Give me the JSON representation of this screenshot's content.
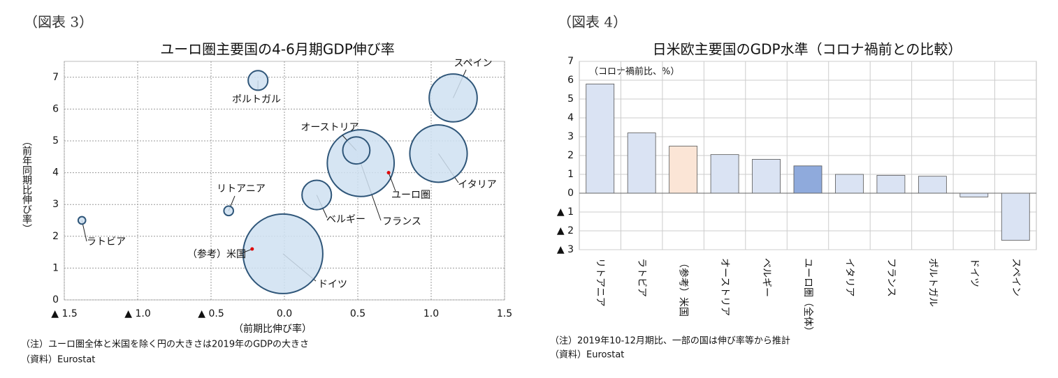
{
  "chart_data": [
    {
      "type": "bubble",
      "label": "（図表 3）",
      "title": "ユーロ圏主要国の4-6月期GDP伸び率",
      "x_label": "（前期比伸び率）",
      "y_label": "（前年同期比伸び率）",
      "xlim": [
        -1.5,
        1.5
      ],
      "xticks": [
        {
          "value": -1.5,
          "label": "▲ 1.5"
        },
        {
          "value": -1.0,
          "label": "▲ 1.0"
        },
        {
          "value": -0.5,
          "label": "▲ 0.5"
        },
        {
          "value": 0,
          "label": "0.0"
        },
        0.5,
        {
          "value": 1.0,
          "label": "1.0"
        },
        1.5
      ],
      "ylim": [
        0,
        7.5
      ],
      "yticks": [
        0,
        1,
        2,
        3,
        4,
        5,
        6,
        7
      ],
      "grid": true,
      "points": [
        {
          "name": "スペイン",
          "x": 1.15,
          "y": 6.35,
          "size": 1.25,
          "color": "#cfe0f1"
        },
        {
          "name": "イタリア",
          "x": 1.05,
          "y": 4.6,
          "size": 1.79,
          "color": "#cfe0f1"
        },
        {
          "name": "フランス",
          "x": 0.52,
          "y": 4.3,
          "size": 2.43,
          "color": "#cfe0f1"
        },
        {
          "name": "オーストリア",
          "x": 0.49,
          "y": 4.7,
          "size": 0.4,
          "color": "#cfe0f1"
        },
        {
          "name": "ポルトガル",
          "x": -0.18,
          "y": 6.9,
          "size": 0.21,
          "color": "#cfe0f1"
        },
        {
          "name": "ユーロ圏",
          "x": 0.71,
          "y": 4.0,
          "size": null,
          "color": "#e00000"
        },
        {
          "name": "ベルギー",
          "x": 0.22,
          "y": 3.3,
          "size": 0.47,
          "color": "#cfe0f1"
        },
        {
          "name": "リトアニア",
          "x": -0.38,
          "y": 2.8,
          "size": 0.049,
          "color": "#cfe0f1"
        },
        {
          "name": "ラトビア",
          "x": -1.38,
          "y": 2.5,
          "size": 0.03,
          "color": "#cfe0f1"
        },
        {
          "name": "ドイツ",
          "x": -0.01,
          "y": 1.45,
          "size": 3.45,
          "color": "#cfe0f1"
        },
        {
          "name": "（参考）米国",
          "x": -0.22,
          "y": 1.6,
          "size": null,
          "color": "#e00000"
        }
      ],
      "notes": [
        "（注）ユーロ圏全体と米国を除く円の大きさは2019年のGDPの大きさ",
        "（資料）Eurostat"
      ]
    },
    {
      "type": "bar",
      "label": "（図表 4）",
      "title": "日米欧主要国のGDP水準（コロナ禍前との比較）",
      "y_label": "（コロナ禍前比、%）",
      "categories": [
        "リトアニア",
        "ラトビア",
        "（参考）米国",
        "オーストリア",
        "ベルギー",
        "ユーロ圏（全体）",
        "イタリア",
        "フランス",
        "ポルトガル",
        "ドイツ",
        "スペイン"
      ],
      "values": [
        5.8,
        3.2,
        2.5,
        2.05,
        1.8,
        1.45,
        1.0,
        0.95,
        0.9,
        -0.2,
        -2.5
      ],
      "colors": [
        "#dae3f3",
        "#dae3f3",
        "#fbe5d6",
        "#dae3f3",
        "#dae3f3",
        "#8faadc",
        "#dae3f3",
        "#dae3f3",
        "#dae3f3",
        "#dae3f3",
        "#dae3f3"
      ],
      "ylim": [
        -3,
        7
      ],
      "yticks": [
        {
          "value": -3,
          "label": "▲ 3"
        },
        {
          "value": -2,
          "label": "▲ 2"
        },
        {
          "value": -1,
          "label": "▲ 1"
        },
        0,
        1,
        2,
        3,
        4,
        5,
        6,
        7
      ],
      "grid": true,
      "notes": [
        "（注）2019年10-12月期比、一部の国は伸び率等から推計",
        "（資料）Eurostat"
      ]
    }
  ]
}
